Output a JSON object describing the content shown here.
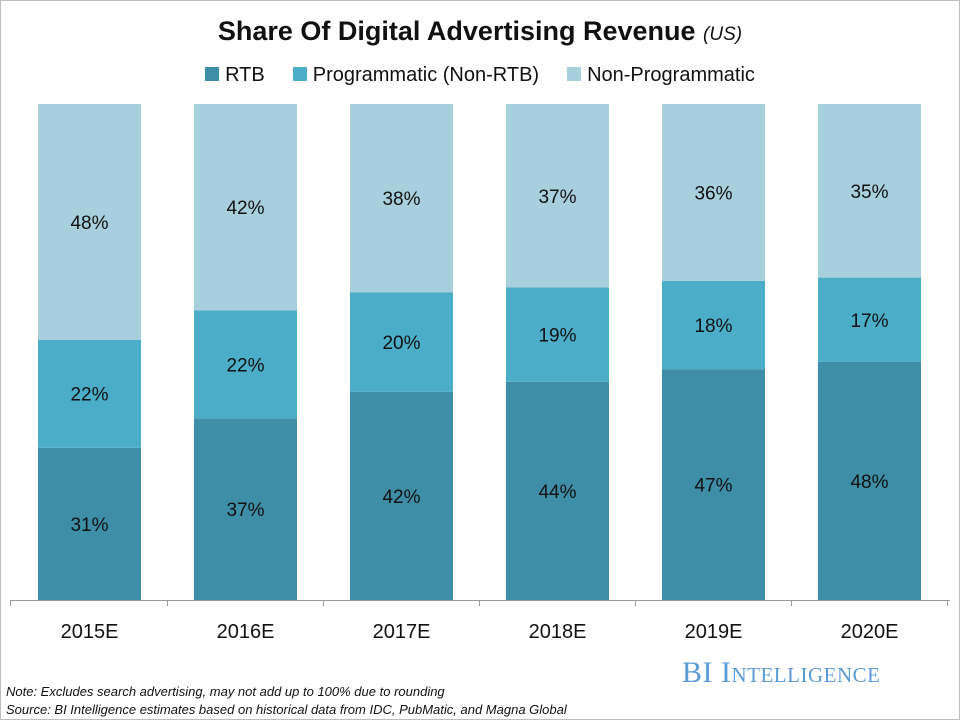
{
  "chart_data": {
    "type": "bar",
    "stacked": true,
    "title": "Share Of Digital Advertising Revenue",
    "subtitle": "(US)",
    "categories": [
      "2015E",
      "2016E",
      "2017E",
      "2018E",
      "2019E",
      "2020E"
    ],
    "series": [
      {
        "name": "RTB",
        "values": [
          31,
          37,
          42,
          44,
          47,
          48
        ],
        "color": "#3d8ea6"
      },
      {
        "name": "Programmatic (Non-RTB)",
        "values": [
          22,
          22,
          20,
          19,
          18,
          17
        ],
        "color": "#4badc8"
      },
      {
        "name": "Non-Programmatic",
        "values": [
          48,
          42,
          38,
          37,
          36,
          35
        ],
        "color": "#a8cfdd"
      }
    ],
    "value_format": "%",
    "legend_position": "top",
    "grid": false,
    "ylim": [
      0,
      100
    ]
  },
  "footer": {
    "note": "Note: Excludes search advertising, may not add up to 100% due to rounding",
    "source": "Source: BI Intelligence estimates based on historical data from IDC, PubMatic, and Magna Global",
    "logo": "BI Intelligence"
  }
}
